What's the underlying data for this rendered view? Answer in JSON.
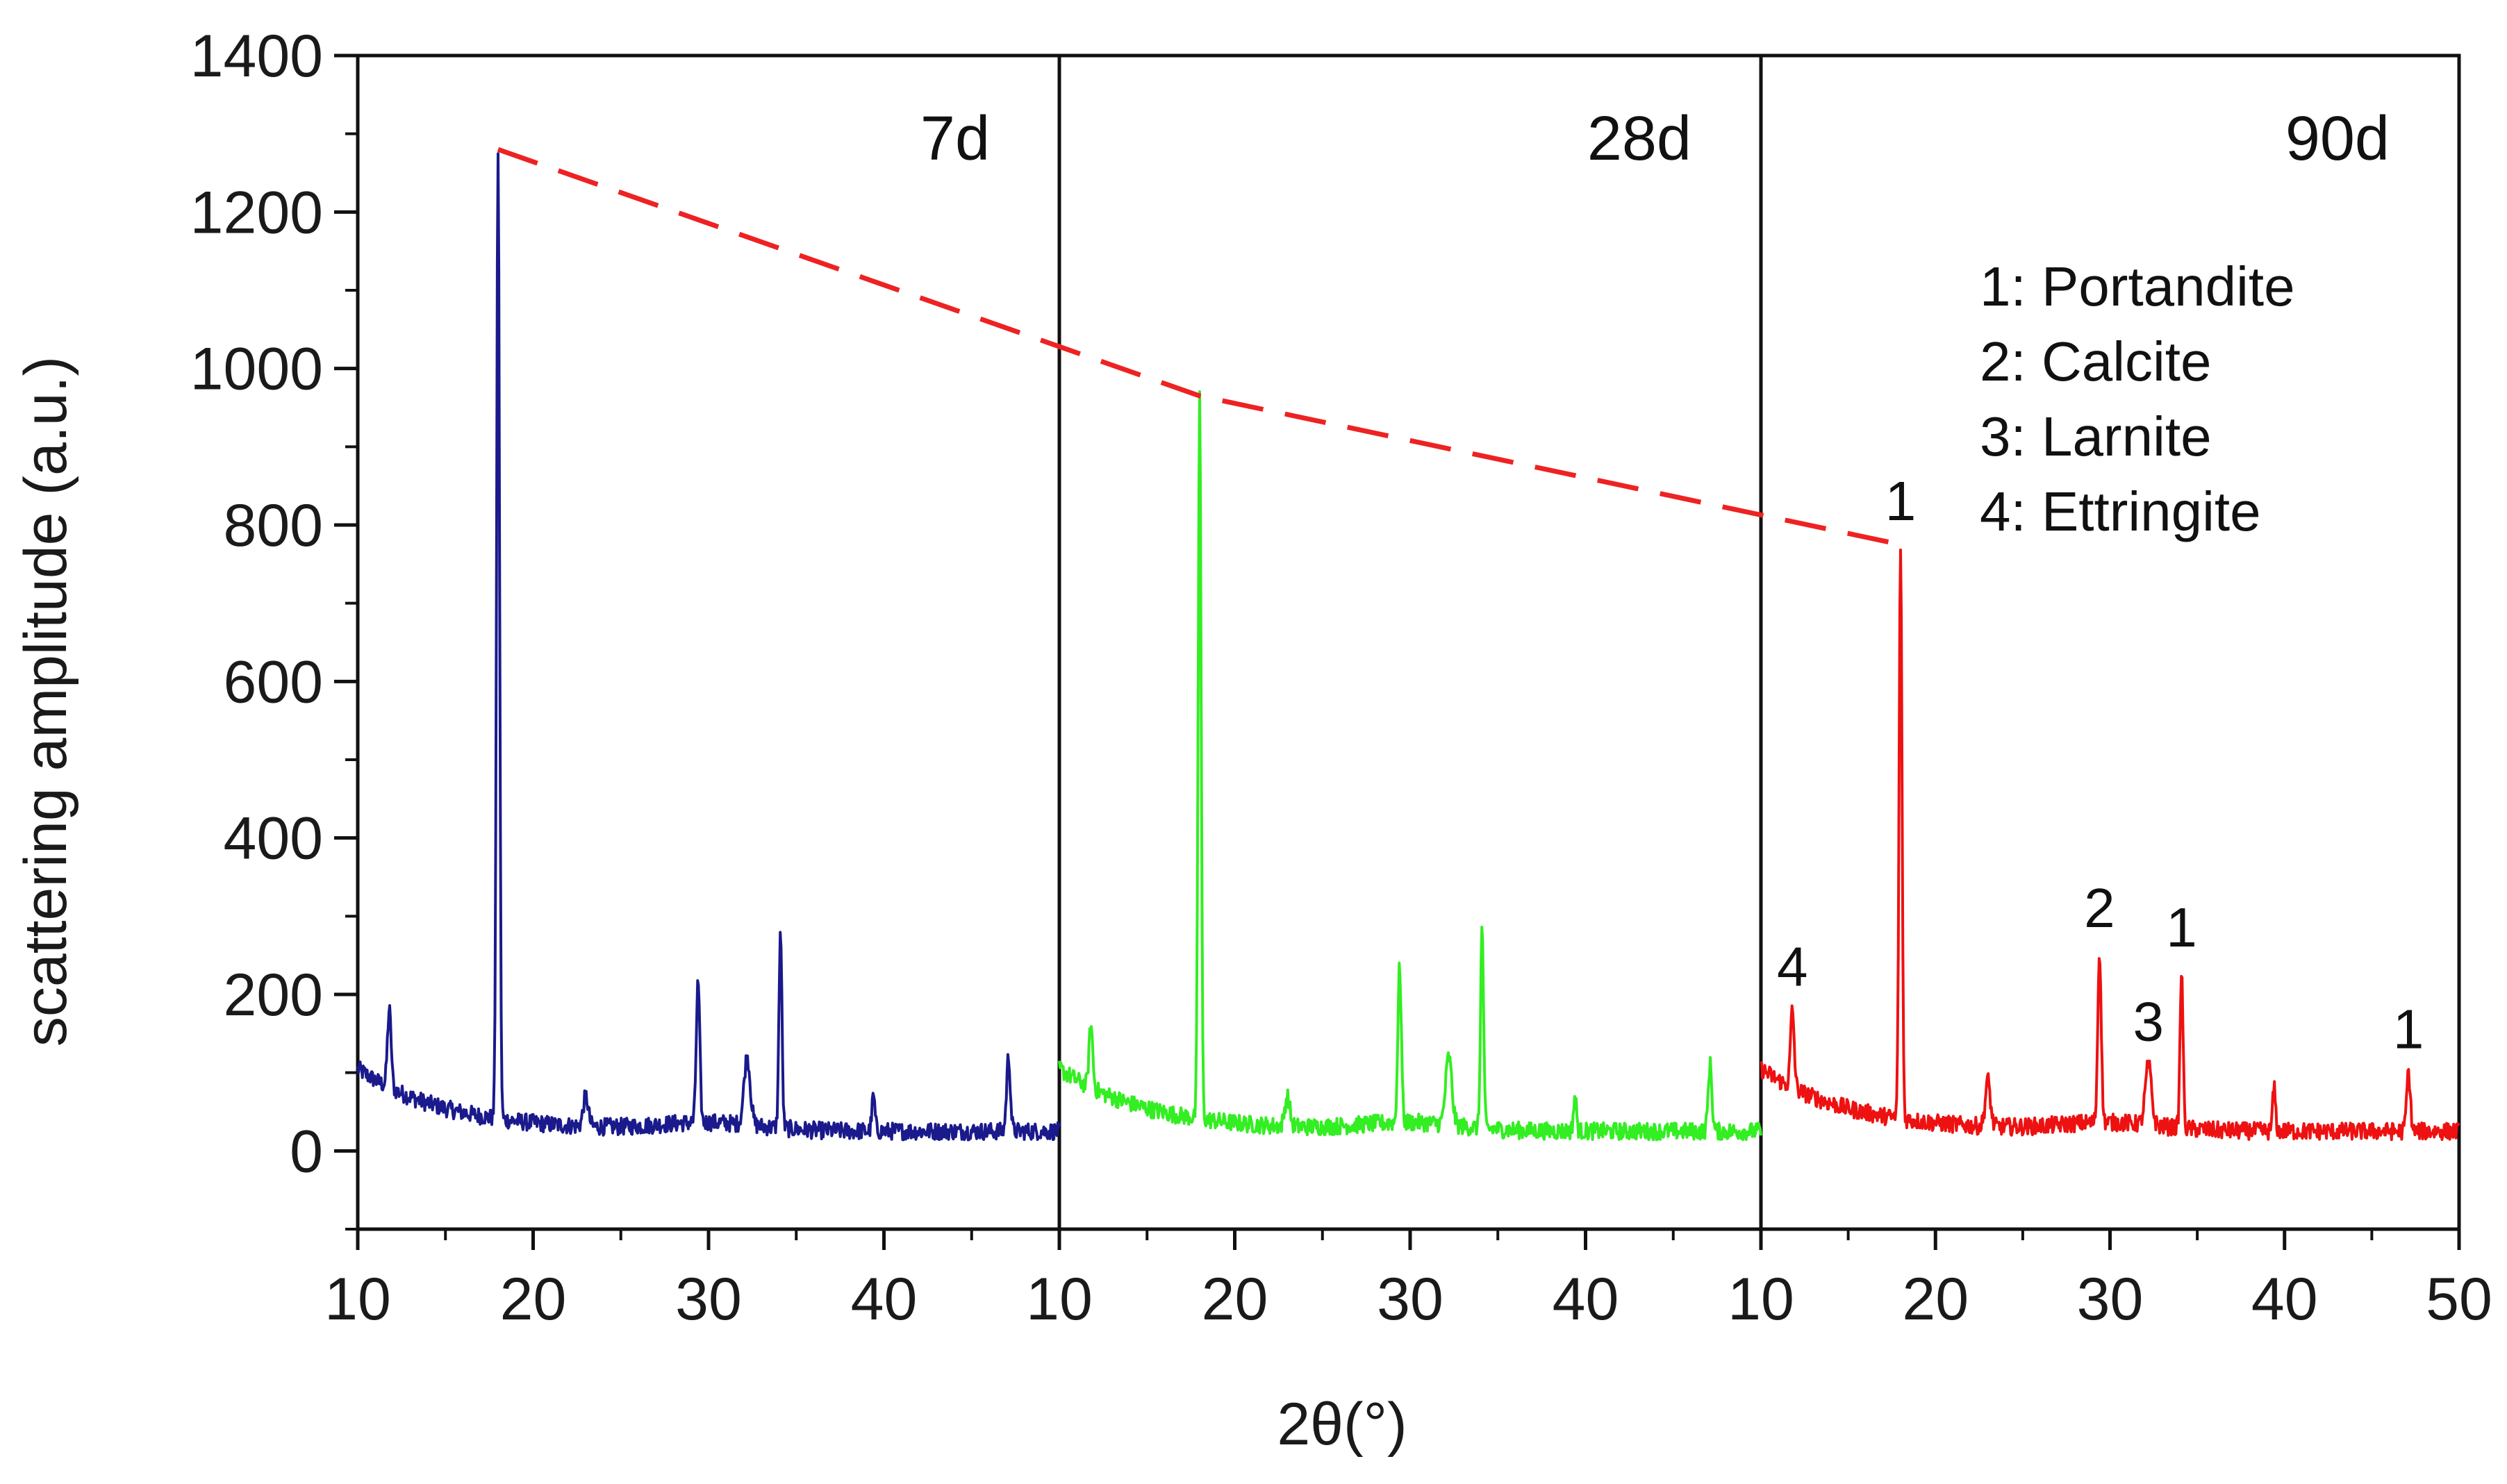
{
  "chart_data": {
    "type": "line",
    "title": "",
    "xlabel": "2θ(°)",
    "ylabel": "scattering amplitude (a.u.)",
    "ylim": [
      -100,
      1400
    ],
    "yticks": [
      0,
      200,
      400,
      600,
      800,
      1000,
      1200,
      1400
    ],
    "ytick_labels": [
      "0",
      "200",
      "400",
      "600",
      "800",
      "1000",
      "1200",
      "1400"
    ],
    "xlim": [
      10,
      50
    ],
    "xtick_labels": [
      [
        "10",
        "20",
        "30",
        "40"
      ],
      [
        "10",
        "20",
        "30",
        "40"
      ],
      [
        "10",
        "20",
        "30",
        "40",
        "50"
      ]
    ],
    "grid": false,
    "panels": [
      {
        "label": "7d",
        "color": "#1a1a8c",
        "peaks": [
          {
            "x": 11.8,
            "y": 180,
            "w": 0.15
          },
          {
            "x": 18.0,
            "y": 1280,
            "w": 0.12
          },
          {
            "x": 23.0,
            "y": 70,
            "w": 0.2
          },
          {
            "x": 29.4,
            "y": 215,
            "w": 0.14
          },
          {
            "x": 32.2,
            "y": 120,
            "w": 0.25
          },
          {
            "x": 34.1,
            "y": 280,
            "w": 0.12
          },
          {
            "x": 39.4,
            "y": 70,
            "w": 0.12
          },
          {
            "x": 47.1,
            "y": 120,
            "w": 0.15
          }
        ]
      },
      {
        "label": "28d",
        "color": "#33ee22",
        "peaks": [
          {
            "x": 11.8,
            "y": 160,
            "w": 0.15
          },
          {
            "x": 18.0,
            "y": 965,
            "w": 0.12
          },
          {
            "x": 23.0,
            "y": 70,
            "w": 0.2
          },
          {
            "x": 29.4,
            "y": 235,
            "w": 0.14
          },
          {
            "x": 32.2,
            "y": 120,
            "w": 0.25
          },
          {
            "x": 34.1,
            "y": 285,
            "w": 0.12
          },
          {
            "x": 39.4,
            "y": 70,
            "w": 0.12
          },
          {
            "x": 47.1,
            "y": 110,
            "w": 0.15
          }
        ]
      },
      {
        "label": "90d",
        "color": "#ee1111",
        "peaks": [
          {
            "x": 11.8,
            "y": 180,
            "w": 0.15
          },
          {
            "x": 18.0,
            "y": 775,
            "w": 0.12
          },
          {
            "x": 23.0,
            "y": 90,
            "w": 0.2
          },
          {
            "x": 29.4,
            "y": 255,
            "w": 0.14
          },
          {
            "x": 32.2,
            "y": 110,
            "w": 0.25
          },
          {
            "x": 34.1,
            "y": 230,
            "w": 0.12
          },
          {
            "x": 39.4,
            "y": 80,
            "w": 0.12
          },
          {
            "x": 47.1,
            "y": 100,
            "w": 0.15
          }
        ],
        "peak_labels": [
          {
            "text": "4",
            "x": 11.8,
            "y": 180
          },
          {
            "text": "1",
            "x": 18.0,
            "y": 775
          },
          {
            "text": "2",
            "x": 29.4,
            "y": 255
          },
          {
            "text": "3",
            "x": 32.2,
            "y": 110
          },
          {
            "text": "1",
            "x": 34.1,
            "y": 230
          },
          {
            "text": "1",
            "x": 47.1,
            "y": 100
          }
        ]
      }
    ],
    "trend_line": {
      "color": "#ee2222",
      "style": "dashed",
      "points": [
        {
          "panel": 0,
          "x": 18.0,
          "y": 1280
        },
        {
          "panel": 1,
          "x": 18.0,
          "y": 965
        },
        {
          "panel": 2,
          "x": 18.0,
          "y": 775
        }
      ]
    },
    "legend": {
      "location": "top-right",
      "entries": [
        "1: Portandite",
        "2: Calcite",
        "3: Larnite",
        "4: Ettringite"
      ]
    }
  }
}
